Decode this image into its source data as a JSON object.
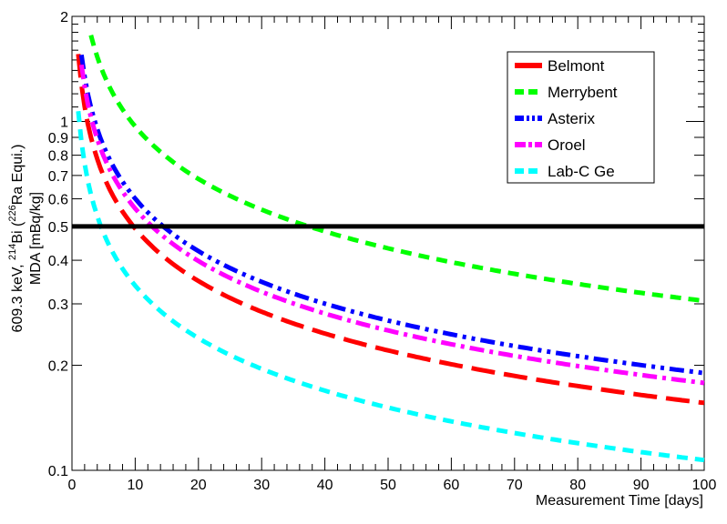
{
  "chart_data": {
    "type": "line",
    "title": "",
    "xlabel": "Measurement Time [days]",
    "ylabel_line1": "609.3 keV, ",
    "ylabel_bi": "214",
    "ylabel_bi_el": "Bi (",
    "ylabel_ra": "226",
    "ylabel_ra_el": "Ra Equi.)",
    "ylabel_line2": "MDA [mBq/kg]",
    "xlim": [
      0,
      100
    ],
    "ylim": [
      0.1,
      2
    ],
    "yscale": "log",
    "x_ticks": [
      0,
      10,
      20,
      30,
      40,
      50,
      60,
      70,
      80,
      90,
      100
    ],
    "y_ticks": [
      {
        "value": 0.1,
        "label": "0.1"
      },
      {
        "value": 0.2,
        "label": "0.2"
      },
      {
        "value": 0.3,
        "label": "0.3"
      },
      {
        "value": 0.4,
        "label": "0.4"
      },
      {
        "value": 0.5,
        "label": "0.5"
      },
      {
        "value": 0.6,
        "label": "0.6"
      },
      {
        "value": 0.7,
        "label": "0.7"
      },
      {
        "value": 0.8,
        "label": "0.8"
      },
      {
        "value": 0.9,
        "label": "0.9"
      },
      {
        "value": 1,
        "label": "1"
      },
      {
        "value": 2,
        "label": "2"
      }
    ],
    "reference_line": {
      "y": 0.5,
      "color": "#000000"
    },
    "legend_position": "top-right",
    "series": [
      {
        "name": "Belmont",
        "color": "#ff0000",
        "dash": "long-dash",
        "x0": 1,
        "k": 1.56
      },
      {
        "name": "Merrybent",
        "color": "#00ff00",
        "dash": "dash",
        "x0": 3,
        "k": 3.06
      },
      {
        "name": "Asterix",
        "color": "#0000ff",
        "dash": "dash-dot-dot",
        "x0": 1.5,
        "k": 1.9
      },
      {
        "name": "Oroel",
        "color": "#ff00ff",
        "dash": "dash-dot",
        "x0": 1.5,
        "k": 1.78
      },
      {
        "name": "Lab-C Ge",
        "color": "#00ffff",
        "dash": "dash",
        "x0": 1,
        "k": 1.07
      }
    ]
  }
}
